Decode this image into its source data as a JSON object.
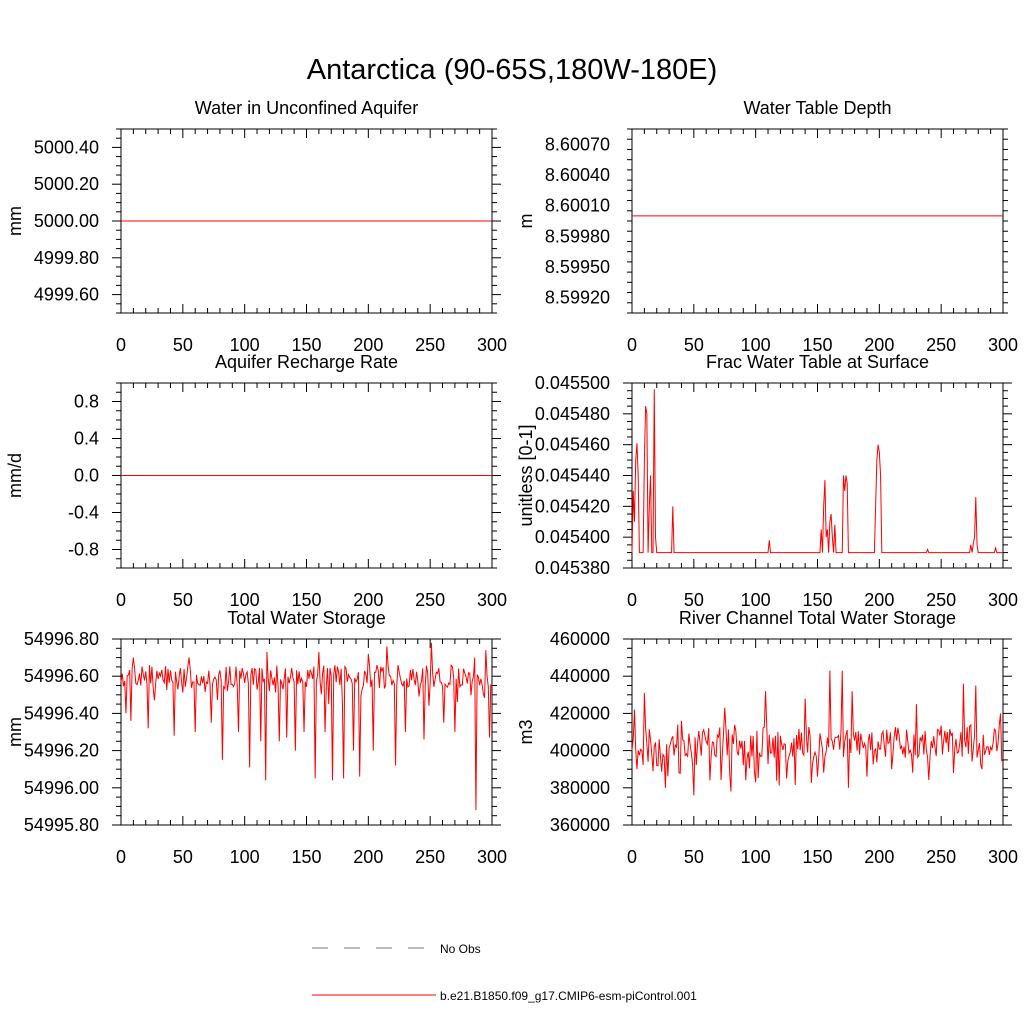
{
  "figure": {
    "title": "Antarctica (90-65S,180W-180E)"
  },
  "legend": {
    "entries": [
      {
        "label": "No Obs",
        "color": "#6b6bc8",
        "style": "dashed"
      },
      {
        "label": "b.e21.B1850.f09_g17.CMIP6-esm-piControl.001",
        "color": "#ff0000",
        "style": "solid"
      }
    ]
  },
  "chart_data": [
    {
      "type": "line",
      "title": "Water in Unconfined Aquifer",
      "ylabel": "mm",
      "xlim": [
        0,
        300
      ],
      "ylim": [
        4999.5,
        5000.5
      ],
      "xticks": [
        0,
        50,
        100,
        150,
        200,
        250,
        300
      ],
      "yticks": [
        4999.6,
        4999.8,
        5000.0,
        5000.2,
        5000.4
      ],
      "ytick_labels": [
        "4999.60",
        "4999.80",
        "5000.00",
        "5000.20",
        "5000.40"
      ],
      "yminor": 0.05,
      "series": [
        {
          "name": "b.e21.B1850.f09_g17.CMIP6-esm-piControl.001",
          "const": 5000.0
        }
      ]
    },
    {
      "type": "line",
      "title": "Water Table Depth",
      "ylabel": "m",
      "xlim": [
        0,
        300
      ],
      "ylim": [
        8.59905,
        8.60085
      ],
      "xticks": [
        0,
        50,
        100,
        150,
        200,
        250,
        300
      ],
      "yticks": [
        8.5992,
        8.5995,
        8.5998,
        8.6001,
        8.6004,
        8.6007
      ],
      "ytick_labels": [
        "8.59920",
        "8.59950",
        "8.59980",
        "8.60010",
        "8.60040",
        "8.60070"
      ],
      "yminor": 0.0001,
      "series": [
        {
          "name": "b.e21.B1850.f09_g17.CMIP6-esm-piControl.001",
          "const": 8.6
        }
      ]
    },
    {
      "type": "line",
      "title": "Aquifer Recharge Rate",
      "ylabel": "mm/d",
      "xlim": [
        0,
        300
      ],
      "ylim": [
        -1.0,
        1.0
      ],
      "xticks": [
        0,
        50,
        100,
        150,
        200,
        250,
        300
      ],
      "yticks": [
        -0.8,
        -0.4,
        0.0,
        0.4,
        0.8
      ],
      "ytick_labels": [
        "-0.8",
        "-0.4",
        "0.0",
        "0.4",
        "0.8"
      ],
      "yminor": 0.1,
      "series": [
        {
          "name": "b.e21.B1850.f09_g17.CMIP6-esm-piControl.001",
          "const": 0.0
        }
      ]
    },
    {
      "type": "line",
      "title": "Frac Water Table at Surface",
      "ylabel": "unitless [0-1]",
      "xlim": [
        0,
        300
      ],
      "ylim": [
        0.04538,
        0.0455
      ],
      "xticks": [
        0,
        50,
        100,
        150,
        200,
        250,
        300
      ],
      "yticks": [
        0.04538,
        0.0454,
        0.04542,
        0.04544,
        0.04546,
        0.04548,
        0.0455
      ],
      "ytick_labels": [
        "0.045380",
        "0.045400",
        "0.045420",
        "0.045440",
        "0.045460",
        "0.045480",
        "0.045500"
      ],
      "yminor": 5e-06,
      "series": [
        {
          "name": "b.e21.B1850.f09_g17.CMIP6-esm-piControl.001",
          "base": 0.04539,
          "peaks": [
            [
              1,
              0.04543
            ],
            [
              2,
              0.04541
            ],
            [
              3,
              0.04545
            ],
            [
              4,
              0.045461
            ],
            [
              5,
              0.04544
            ],
            [
              6,
              0.04539
            ],
            [
              7,
              0.04539
            ],
            [
              8,
              0.04539
            ],
            [
              9,
              0.04539
            ],
            [
              10,
              0.04545
            ],
            [
              11,
              0.045485
            ],
            [
              12,
              0.04548
            ],
            [
              13,
              0.04539
            ],
            [
              14,
              0.04542
            ],
            [
              15,
              0.04544
            ],
            [
              16,
              0.04539
            ],
            [
              17,
              0.04539
            ],
            [
              18,
              0.045496
            ],
            [
              19,
              0.0454
            ],
            [
              20,
              0.04539
            ],
            [
              33,
              0.04542
            ],
            [
              34,
              0.04539
            ],
            [
              110,
              0.04539
            ],
            [
              111,
              0.045398
            ],
            [
              112,
              0.04539
            ],
            [
              152,
              0.04539
            ],
            [
              153,
              0.045405
            ],
            [
              154,
              0.04539
            ],
            [
              155,
              0.04542
            ],
            [
              156,
              0.045437
            ],
            [
              157,
              0.0454
            ],
            [
              158,
              0.045405
            ],
            [
              159,
              0.04539
            ],
            [
              160,
              0.04541
            ],
            [
              161,
              0.045415
            ],
            [
              162,
              0.0454
            ],
            [
              163,
              0.04539
            ],
            [
              164,
              0.045408
            ],
            [
              165,
              0.04539
            ],
            [
              170,
              0.04539
            ],
            [
              171,
              0.04544
            ],
            [
              172,
              0.04543
            ],
            [
              173,
              0.04544
            ],
            [
              174,
              0.045435
            ],
            [
              175,
              0.04539
            ],
            [
              196,
              0.04539
            ],
            [
              197,
              0.04542
            ],
            [
              198,
              0.04545
            ],
            [
              199,
              0.04546
            ],
            [
              200,
              0.045455
            ],
            [
              201,
              0.04544
            ],
            [
              202,
              0.04539
            ],
            [
              238,
              0.04539
            ],
            [
              239,
              0.045392
            ],
            [
              240,
              0.04539
            ],
            [
              273,
              0.04539
            ],
            [
              274,
              0.045395
            ],
            [
              275,
              0.04539
            ],
            [
              276,
              0.045396
            ],
            [
              277,
              0.0454
            ],
            [
              278,
              0.045426
            ],
            [
              279,
              0.045395
            ],
            [
              280,
              0.04539
            ],
            [
              293,
              0.04539
            ],
            [
              294,
              0.045393
            ],
            [
              295,
              0.04539
            ]
          ]
        }
      ]
    },
    {
      "type": "line",
      "title": "Total Water Storage",
      "ylabel": "mm",
      "xlim": [
        0,
        300
      ],
      "ylim": [
        54995.8,
        54996.8
      ],
      "xticks": [
        0,
        50,
        100,
        150,
        200,
        250,
        300
      ],
      "yticks": [
        54995.8,
        54996.0,
        54996.2,
        54996.4,
        54996.6,
        54996.8
      ],
      "ytick_labels": [
        "54995.80",
        "54996.00",
        "54996.20",
        "54996.40",
        "54996.60",
        "54996.80"
      ],
      "yminor": 0.05,
      "series": [
        {
          "name": "b.e21.B1850.f09_g17.CMIP6-esm-piControl.001",
          "seed": 7,
          "mean": 54996.6,
          "amp": 0.06,
          "drops": [
            [
              4,
              54996.4
            ],
            [
              8,
              54996.36
            ],
            [
              22,
              54996.32
            ],
            [
              43,
              54996.28
            ],
            [
              60,
              54996.3
            ],
            [
              73,
              54996.35
            ],
            [
              82,
              54996.15
            ],
            [
              95,
              54996.3
            ],
            [
              104,
              54996.11
            ],
            [
              113,
              54996.25
            ],
            [
              117,
              54996.04
            ],
            [
              128,
              54996.25
            ],
            [
              134,
              54996.27
            ],
            [
              141,
              54996.2
            ],
            [
              148,
              54996.3
            ],
            [
              157,
              54996.05
            ],
            [
              165,
              54996.3
            ],
            [
              171,
              54996.04
            ],
            [
              180,
              54996.05
            ],
            [
              188,
              54996.2
            ],
            [
              193,
              54996.06
            ],
            [
              204,
              54996.2
            ],
            [
              215,
              54996.25
            ],
            [
              222,
              54996.12
            ],
            [
              230,
              54996.3
            ],
            [
              245,
              54996.26
            ],
            [
              261,
              54996.35
            ],
            [
              270,
              54996.3
            ],
            [
              287,
              54995.88
            ],
            [
              298,
              54996.27
            ]
          ],
          "highs": [
            [
              10,
              54996.7
            ],
            [
              55,
              54996.7
            ],
            [
              118,
              54996.73
            ],
            [
              160,
              54996.73
            ],
            [
              200,
              54996.72
            ],
            [
              215,
              54996.76
            ],
            [
              251,
              54996.78
            ],
            [
              286,
              54996.7
            ],
            [
              295,
              54996.74
            ]
          ]
        }
      ]
    },
    {
      "type": "line",
      "title": "River Channel Total Water Storage",
      "ylabel": "m3",
      "xlim": [
        0,
        300
      ],
      "ylim": [
        360000,
        460000
      ],
      "xticks": [
        0,
        50,
        100,
        150,
        200,
        250,
        300
      ],
      "yticks": [
        360000,
        380000,
        400000,
        420000,
        440000,
        460000
      ],
      "ytick_labels": [
        "360000",
        "380000",
        "400000",
        "420000",
        "440000",
        "460000"
      ],
      "yminor": 5000,
      "series": [
        {
          "name": "b.e21.B1850.f09_g17.CMIP6-esm-piControl.001",
          "seed": 23,
          "mean": 405000,
          "amp": 9000,
          "drops": [
            [
              4,
              390000
            ],
            [
              20,
              392000
            ],
            [
              38,
              388000
            ],
            [
              50,
              376000
            ],
            [
              63,
              384000
            ],
            [
              80,
              378000
            ],
            [
              100,
              383000
            ],
            [
              125,
              385000
            ],
            [
              150,
              386000
            ],
            [
              175,
              380000
            ],
            [
              190,
              386000
            ],
            [
              210,
              390000
            ],
            [
              230,
              392000
            ],
            [
              260,
              388000
            ],
            [
              283,
              390000
            ]
          ],
          "highs": [
            [
              2,
              422000
            ],
            [
              10,
              431000
            ],
            [
              40,
              416000
            ],
            [
              75,
              423000
            ],
            [
              108,
              432000
            ],
            [
              140,
              428000
            ],
            [
              160,
              443000
            ],
            [
              170,
              443000
            ],
            [
              178,
              432000
            ],
            [
              230,
              425000
            ],
            [
              268,
              436000
            ],
            [
              278,
              435000
            ],
            [
              298,
              420000
            ]
          ]
        }
      ]
    }
  ]
}
